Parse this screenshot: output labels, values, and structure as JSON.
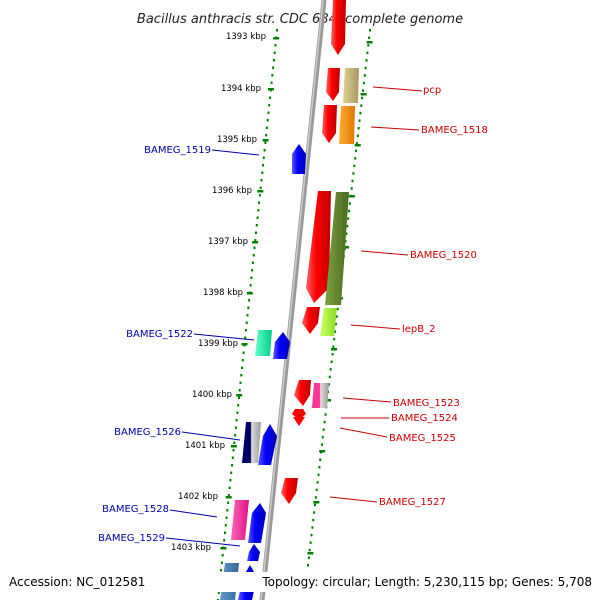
{
  "title": "Bacillus anthracis str. CDC 684, complete genome",
  "footer": {
    "accession": "Accession: NC_012581",
    "summary": "Topology: circular; Length: 5,230,115 bp; Genes: 5,708"
  },
  "scale_ticks": [
    "1393 kbp",
    "1394 kbp",
    "1395 kbp",
    "1396 kbp",
    "1397 kbp",
    "1398 kbp",
    "1399 kbp",
    "1400 kbp",
    "1401 kbp",
    "1402 kbp",
    "1403 kbp"
  ],
  "gene_labels": {
    "pcp": "pcp",
    "BAMEG_1518": "BAMEG_1518",
    "BAMEG_1519": "BAMEG_1519",
    "BAMEG_1520": "BAMEG_1520",
    "BAMEG_1522": "BAMEG_1522",
    "lepB_2": "lepB_2",
    "BAMEG_1523": "BAMEG_1523",
    "BAMEG_1524": "BAMEG_1524",
    "BAMEG_1525": "BAMEG_1525",
    "BAMEG_1526": "BAMEG_1526",
    "BAMEG_1527": "BAMEG_1527",
    "BAMEG_1528": "BAMEG_1528",
    "BAMEG_1529": "BAMEG_1529"
  },
  "colors": {
    "forward_strand_gene": "#ff0000",
    "reverse_strand_gene": "#0000ff",
    "forward_label": "#cc0000",
    "reverse_label": "#0000aa",
    "ruler_dots": "#008000",
    "backbone": "#888888"
  }
}
